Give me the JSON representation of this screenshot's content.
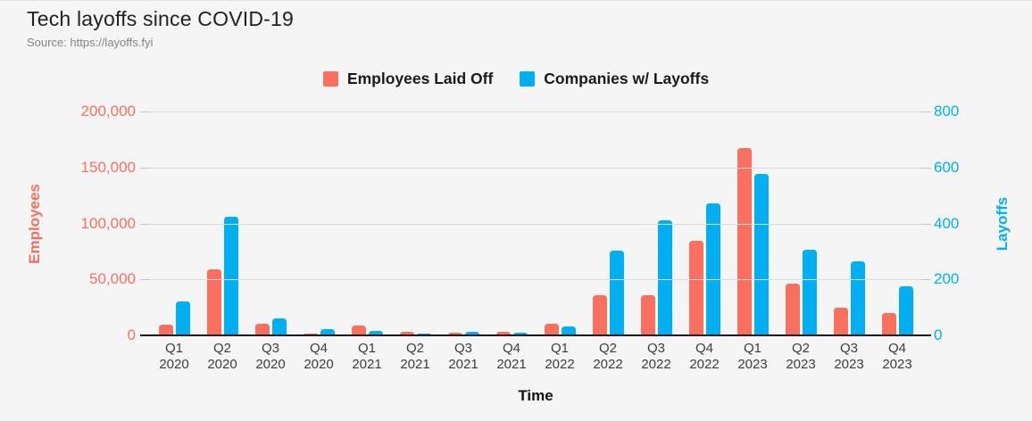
{
  "header": {
    "title": "Tech layoffs since COVID-19",
    "source": "Source: https://layoffs.fyi"
  },
  "chart_data": {
    "type": "bar",
    "title": "Tech layoffs since COVID-19",
    "source": "Source: https://layoffs.fyi",
    "categories": [
      "Q1 2020",
      "Q2 2020",
      "Q3 2020",
      "Q4 2020",
      "Q1 2021",
      "Q2 2021",
      "Q3 2021",
      "Q4 2021",
      "Q1 2022",
      "Q2 2022",
      "Q3 2022",
      "Q4 2022",
      "Q1 2023",
      "Q2 2023",
      "Q3 2023",
      "Q4 2023"
    ],
    "series": [
      {
        "name": "Employees Laid Off",
        "axis": "left",
        "color": "#F9705E",
        "values": [
          9500,
          59000,
          10500,
          1500,
          8500,
          3300,
          2700,
          3600,
          10200,
          36000,
          36000,
          84500,
          167000,
          46500,
          24500,
          20000
        ]
      },
      {
        "name": "Companies w/ Layoffs",
        "axis": "right",
        "color": "#00AEF2",
        "values": [
          122,
          425,
          61,
          24,
          17,
          8,
          12,
          11,
          33,
          302,
          410,
          472,
          578,
          305,
          265,
          176
        ]
      }
    ],
    "left_axis": {
      "label": "Employees",
      "max": 200000,
      "ticks": [
        200000,
        150000,
        100000,
        50000,
        0
      ],
      "tick_labels": [
        "200,000",
        "150,000",
        "100,000",
        "50,000",
        "0"
      ]
    },
    "right_axis": {
      "label": "Layoffs",
      "max": 800,
      "ticks": [
        800,
        600,
        400,
        200,
        0
      ],
      "tick_labels": [
        "800",
        "600",
        "400",
        "200",
        "0"
      ]
    },
    "xlabel": "Time",
    "grid": true,
    "legend_position": "top-center",
    "background": "#f5f5f5"
  }
}
